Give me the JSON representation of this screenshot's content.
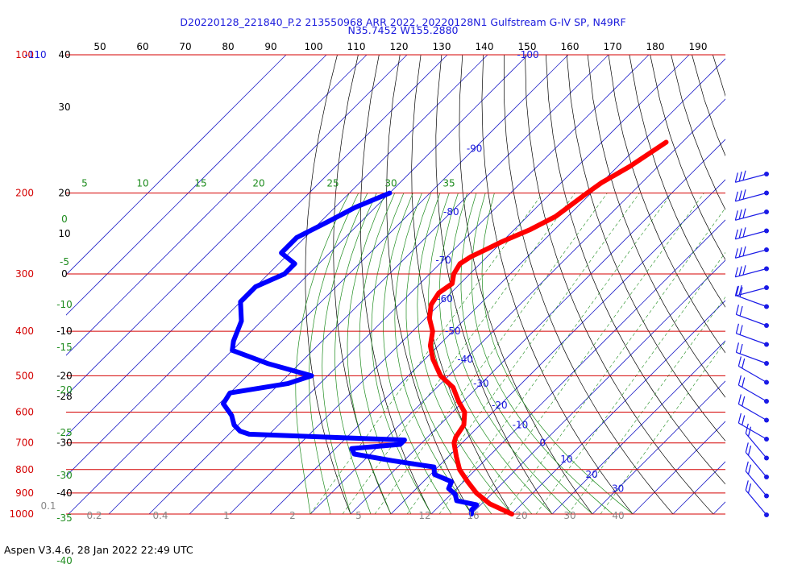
{
  "header": {
    "title_line1": "D20220128_221840_P.2 213550968 ARR 2022, 20220128N1 Gulfstream G-IV SP, N49RF",
    "title_line2": "N35.7452 W155.2880"
  },
  "footer": {
    "text": "Aspen V3.4.6, 28 Jan 2022  22:49 UTC"
  },
  "colors": {
    "pressure_line": "#d40000",
    "isotherm": "#2222c8",
    "dry_adiabat": "#000000",
    "moist_adiabat": "#1e8c1e",
    "mixing_ratio": "#1e8c1e",
    "temperature": "#ff0000",
    "dewpoint": "#0000ff",
    "wind_barb": "#1a1ae6",
    "tick_text": "#000000",
    "pressure_label": "#d40000",
    "isotherm_label": "#1a1adc",
    "mixing_label": "#1e8c1e",
    "theta_label": "#888888"
  },
  "chart_data": {
    "type": "skew-t",
    "top_axis_ticks": [
      "50",
      "60",
      "70",
      "80",
      "90",
      "100",
      "110",
      "120",
      "130",
      "140",
      "150",
      "160",
      "170",
      "180",
      "190"
    ],
    "pressure_levels": [
      {
        "hpa": 100,
        "label": "100",
        "height_label": "40"
      },
      {
        "hpa": 200,
        "label": "200",
        "height_label": "20"
      },
      {
        "hpa": 300,
        "label": "300",
        "height_label": "0"
      },
      {
        "hpa": 400,
        "label": "400",
        "height_label": "-10"
      },
      {
        "hpa": 500,
        "label": "500",
        "height_label": "-20"
      },
      {
        "hpa": 600,
        "label": "600",
        "height_label": ""
      },
      {
        "hpa": 700,
        "label": "700",
        "height_label": "-30"
      },
      {
        "hpa": 800,
        "label": "800",
        "height_label": ""
      },
      {
        "hpa": 900,
        "label": "900",
        "height_label": "-40"
      },
      {
        "hpa": 1000,
        "label": "1000",
        "height_label": ""
      }
    ],
    "extra_axis_labels": [
      {
        "text": "-110",
        "hpa": 100
      },
      {
        "text": "30",
        "hpa": 130
      },
      {
        "text": "10",
        "hpa": 245
      },
      {
        "text": "-28",
        "hpa": 555
      },
      {
        "text": "0.1",
        "hpa": 960
      }
    ],
    "isotherms_c": [
      -100,
      -90,
      -80,
      -70,
      -60,
      -50,
      -40,
      -30,
      -20,
      -10,
      0,
      10,
      20,
      30
    ],
    "mixing_ratio_top_labels": [
      "5",
      "10",
      "15",
      "20",
      "25",
      "30",
      "35"
    ],
    "mixing_ratio_bottom_labels": [
      "0.2",
      "0.4",
      "1",
      "2",
      "5",
      "12",
      "16",
      "20",
      "30",
      "40"
    ],
    "theta_left_labels": [
      "0",
      "-5",
      "-10",
      "-15",
      "-20",
      "-25",
      "-30",
      "-35",
      "-40"
    ],
    "temperature_profile": [
      {
        "p": 155,
        "t": -44
      },
      {
        "p": 175,
        "t": -47
      },
      {
        "p": 190,
        "t": -50
      },
      {
        "p": 200,
        "t": -51
      },
      {
        "p": 225,
        "t": -53
      },
      {
        "p": 240,
        "t": -56
      },
      {
        "p": 255,
        "t": -60
      },
      {
        "p": 265,
        "t": -62
      },
      {
        "p": 275,
        "t": -64
      },
      {
        "p": 285,
        "t": -65
      },
      {
        "p": 300,
        "t": -64
      },
      {
        "p": 315,
        "t": -62
      },
      {
        "p": 330,
        "t": -63
      },
      {
        "p": 350,
        "t": -62
      },
      {
        "p": 375,
        "t": -59
      },
      {
        "p": 400,
        "t": -55
      },
      {
        "p": 430,
        "t": -52
      },
      {
        "p": 460,
        "t": -48
      },
      {
        "p": 500,
        "t": -42
      },
      {
        "p": 530,
        "t": -36
      },
      {
        "p": 570,
        "t": -31
      },
      {
        "p": 600,
        "t": -27
      },
      {
        "p": 640,
        "t": -24
      },
      {
        "p": 680,
        "t": -23
      },
      {
        "p": 700,
        "t": -22
      },
      {
        "p": 750,
        "t": -18
      },
      {
        "p": 800,
        "t": -14
      },
      {
        "p": 850,
        "t": -9
      },
      {
        "p": 900,
        "t": -4
      },
      {
        "p": 950,
        "t": 2
      },
      {
        "p": 1000,
        "t": 10
      }
    ],
    "dewpoint_profile": [
      {
        "p": 200,
        "t": -100
      },
      {
        "p": 215,
        "t": -105
      },
      {
        "p": 230,
        "t": -108
      },
      {
        "p": 250,
        "t": -112
      },
      {
        "p": 270,
        "t": -112
      },
      {
        "p": 285,
        "t": -106
      },
      {
        "p": 300,
        "t": -106
      },
      {
        "p": 320,
        "t": -110
      },
      {
        "p": 345,
        "t": -110
      },
      {
        "p": 380,
        "t": -105
      },
      {
        "p": 420,
        "t": -102
      },
      {
        "p": 440,
        "t": -100
      },
      {
        "p": 470,
        "t": -88
      },
      {
        "p": 500,
        "t": -74
      },
      {
        "p": 520,
        "t": -78
      },
      {
        "p": 545,
        "t": -90
      },
      {
        "p": 575,
        "t": -89
      },
      {
        "p": 610,
        "t": -84
      },
      {
        "p": 640,
        "t": -81
      },
      {
        "p": 660,
        "t": -78
      },
      {
        "p": 670,
        "t": -75
      },
      {
        "p": 690,
        "t": -35
      },
      {
        "p": 705,
        "t": -35
      },
      {
        "p": 720,
        "t": -46
      },
      {
        "p": 740,
        "t": -44
      },
      {
        "p": 765,
        "t": -33
      },
      {
        "p": 790,
        "t": -21
      },
      {
        "p": 820,
        "t": -19
      },
      {
        "p": 850,
        "t": -13
      },
      {
        "p": 880,
        "t": -12
      },
      {
        "p": 905,
        "t": -9
      },
      {
        "p": 935,
        "t": -7
      },
      {
        "p": 955,
        "t": -1
      },
      {
        "p": 980,
        "t": -1
      },
      {
        "p": 1000,
        "t": 0
      }
    ],
    "wind_barb_levels_hpa": [
      150,
      175,
      200,
      225,
      260,
      290,
      320,
      350,
      380,
      410,
      440,
      470,
      500,
      540,
      580,
      620,
      660,
      700,
      740
    ]
  }
}
